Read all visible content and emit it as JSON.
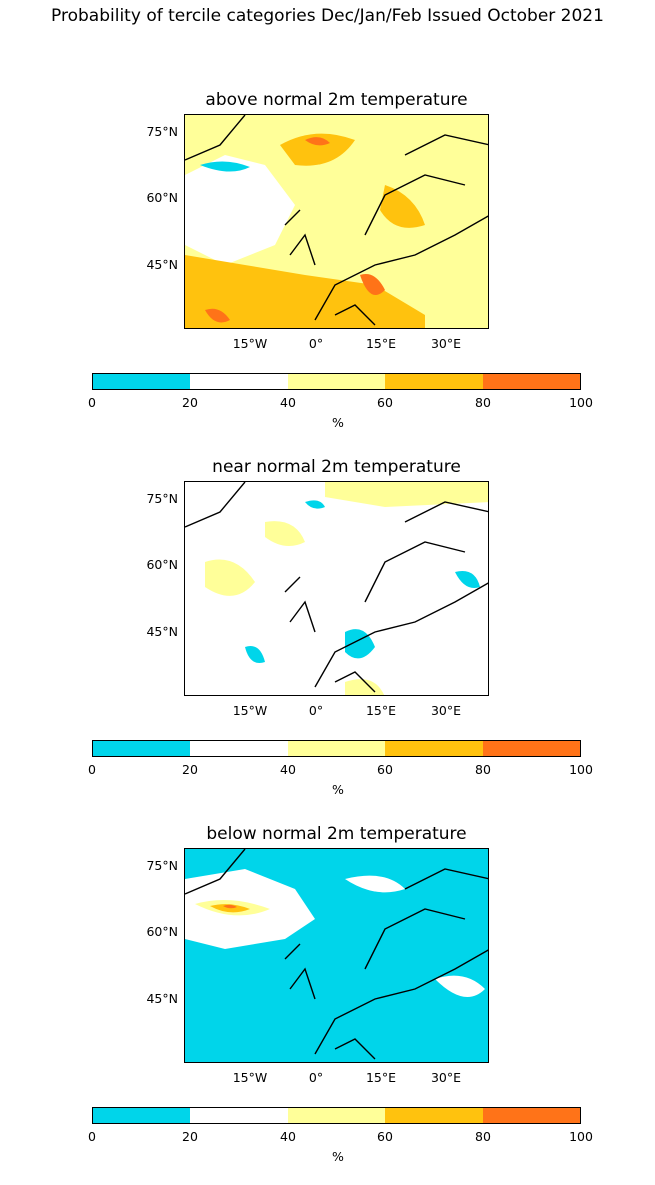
{
  "figure": {
    "title": "Probability of tercile categories Dec/Jan/Feb Issued October 2021"
  },
  "panels": [
    {
      "title": "above normal 2m temperature",
      "lat_labels": [
        "75°N",
        "60°N",
        "45°N"
      ],
      "lon_labels": [
        "15°W",
        "0°",
        "15°E",
        "30°E"
      ],
      "dominant_category": "40-60"
    },
    {
      "title": "near normal 2m temperature",
      "lat_labels": [
        "75°N",
        "60°N",
        "45°N"
      ],
      "lon_labels": [
        "15°W",
        "0°",
        "15°E",
        "30°E"
      ],
      "dominant_category": "20-40"
    },
    {
      "title": "below normal 2m temperature",
      "lat_labels": [
        "75°N",
        "60°N",
        "45°N"
      ],
      "lon_labels": [
        "15°W",
        "0°",
        "15°E",
        "30°E"
      ],
      "dominant_category": "0-20"
    }
  ],
  "colorbar": {
    "ticks": [
      "0",
      "20",
      "40",
      "60",
      "80",
      "100"
    ],
    "unit": "%",
    "colors": [
      "#00d5ea",
      "#ffffff",
      "#ffff99",
      "#ffc20e",
      "#ff7318"
    ]
  }
}
